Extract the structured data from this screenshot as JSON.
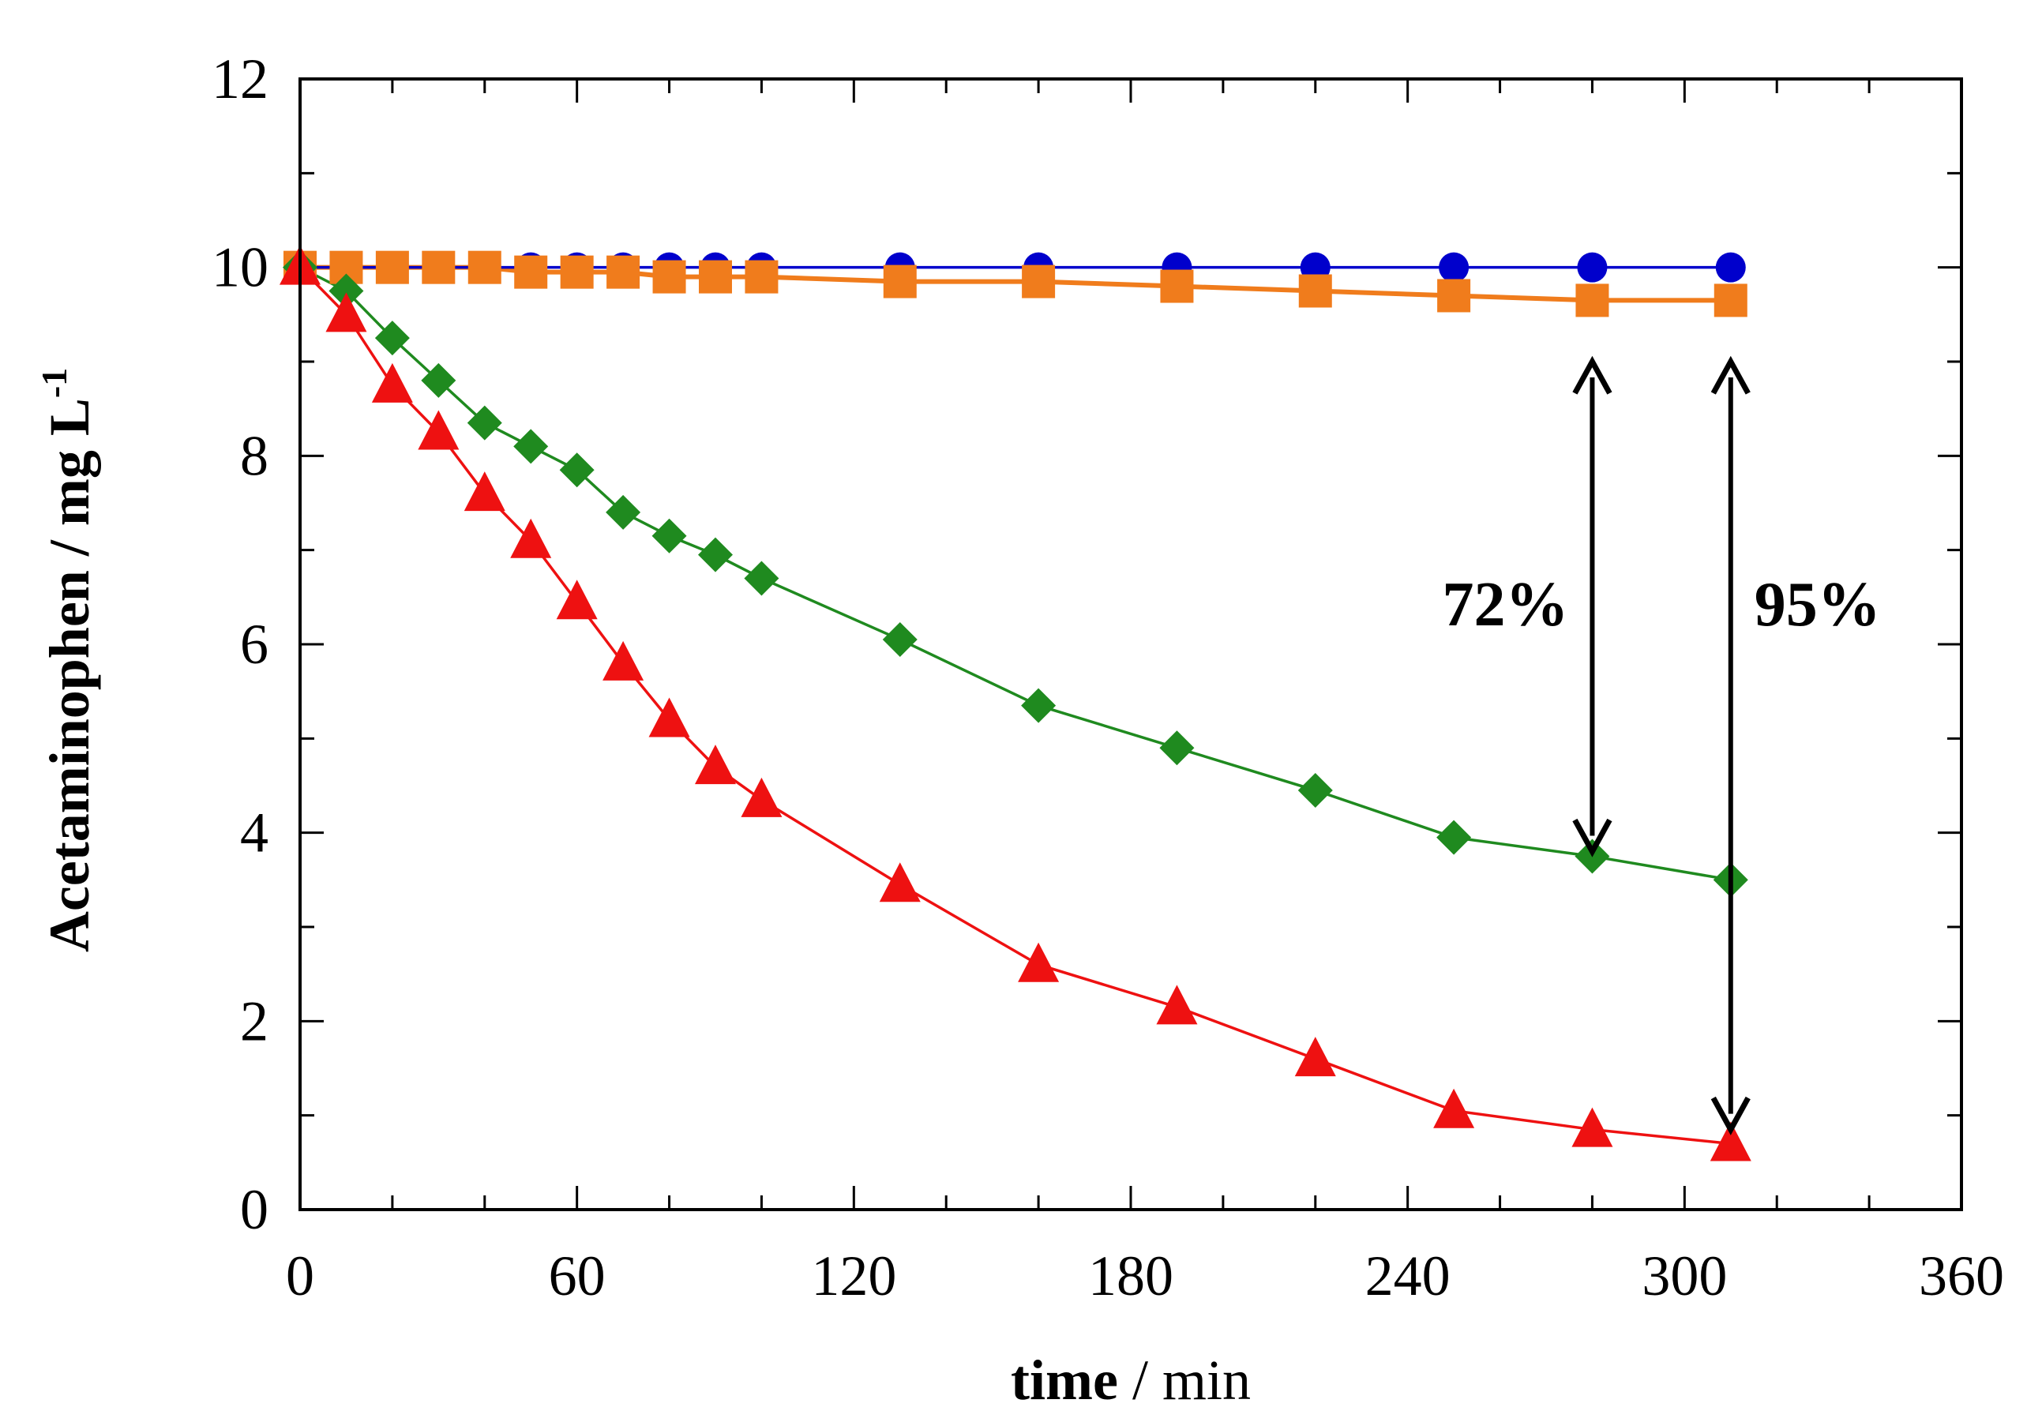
{
  "chart_data": {
    "type": "line",
    "title": "",
    "xlabel_bold": "time",
    "xlabel_rest": " / min",
    "ylabel": "Acetaminophen / mg L",
    "ylabel_sup": "-1",
    "xlim": [
      0,
      360
    ],
    "ylim": [
      0,
      12
    ],
    "xticks": [
      0,
      60,
      120,
      180,
      240,
      300,
      360
    ],
    "yticks": [
      0,
      2,
      4,
      6,
      8,
      10,
      12
    ],
    "xtick_labels": [
      "0",
      "60",
      "120",
      "180",
      "240",
      "300",
      "360"
    ],
    "ytick_labels": [
      "0",
      "2",
      "4",
      "6",
      "8",
      "10",
      "12"
    ],
    "grid": false,
    "series": [
      {
        "name": "blue-circles",
        "marker": "circle",
        "color": "#0000cc",
        "x": [
          0,
          10,
          20,
          30,
          40,
          50,
          60,
          70,
          80,
          90,
          100,
          130,
          160,
          190,
          220,
          250,
          280,
          310
        ],
        "y": [
          10,
          10,
          10,
          10,
          10,
          10,
          10,
          10,
          10,
          10,
          10,
          10,
          10,
          10,
          10,
          10,
          10,
          10
        ]
      },
      {
        "name": "orange-squares",
        "marker": "square",
        "color": "#f07c1c",
        "x": [
          0,
          10,
          20,
          30,
          40,
          50,
          60,
          70,
          80,
          90,
          100,
          130,
          160,
          190,
          220,
          250,
          280,
          310
        ],
        "y": [
          10,
          10,
          10,
          10,
          10,
          9.95,
          9.95,
          9.95,
          9.9,
          9.9,
          9.9,
          9.85,
          9.85,
          9.8,
          9.75,
          9.7,
          9.65,
          9.65
        ]
      },
      {
        "name": "green-diamonds",
        "marker": "diamond",
        "color": "#1f8a1f",
        "x": [
          0,
          10,
          20,
          30,
          40,
          50,
          60,
          70,
          80,
          90,
          100,
          130,
          160,
          190,
          220,
          250,
          280,
          310
        ],
        "y": [
          10,
          9.75,
          9.25,
          8.8,
          8.35,
          8.1,
          7.85,
          7.4,
          7.15,
          6.95,
          6.7,
          6.05,
          5.35,
          4.9,
          4.45,
          3.95,
          3.75,
          3.5
        ]
      },
      {
        "name": "red-triangles",
        "marker": "triangle",
        "color": "#ee1111",
        "x": [
          0,
          10,
          20,
          30,
          40,
          50,
          60,
          70,
          80,
          90,
          100,
          130,
          160,
          190,
          220,
          250,
          280,
          310
        ],
        "y": [
          10,
          9.5,
          8.75,
          8.25,
          7.6,
          7.1,
          6.45,
          5.8,
          5.2,
          4.7,
          4.35,
          3.45,
          2.6,
          2.15,
          1.6,
          1.05,
          0.85,
          0.7
        ]
      }
    ],
    "annotations": [
      {
        "text": "72%",
        "x": 280,
        "y_from": 9.0,
        "y_to": 3.8
      },
      {
        "text": "95%",
        "x": 310,
        "y_from": 9.0,
        "y_to": 0.85
      }
    ]
  }
}
